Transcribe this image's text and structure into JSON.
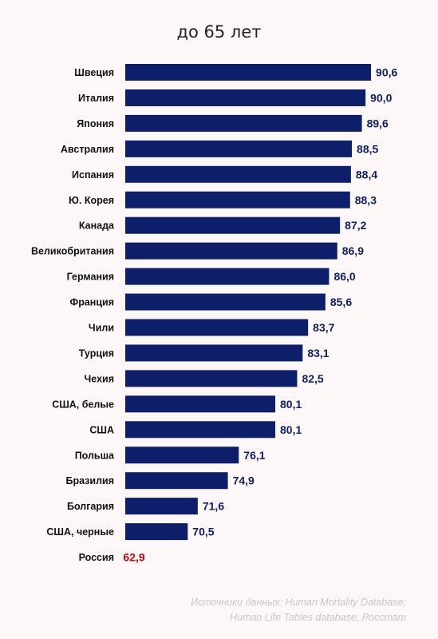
{
  "chart_data": {
    "type": "bar",
    "orientation": "horizontal",
    "title": "до 65 лет",
    "categories": [
      "Швеция",
      "Италия",
      "Япония",
      "Австралия",
      "Испания",
      "Ю. Корея",
      "Канада",
      "Великобритания",
      "Германия",
      "Франция",
      "Чили",
      "Турция",
      "Чехия",
      "США, белые",
      "США",
      "Польша",
      "Бразилия",
      "Болгария",
      "США, черные",
      "Россия"
    ],
    "values": [
      90.6,
      90.0,
      89.6,
      88.5,
      88.4,
      88.3,
      87.2,
      86.9,
      86.0,
      85.6,
      83.7,
      83.1,
      82.5,
      80.1,
      80.1,
      76.1,
      74.9,
      71.6,
      70.5,
      62.9
    ],
    "value_labels": [
      "90,6",
      "90,0",
      "89,6",
      "88,5",
      "88,4",
      "88,3",
      "87,2",
      "86,9",
      "86,0",
      "85,6",
      "83,7",
      "83,1",
      "82,5",
      "80,1",
      "80,1",
      "76,1",
      "74,9",
      "71,6",
      "70,5",
      "62,9"
    ],
    "highlight_index": 19,
    "colors": {
      "bar": "#0d1f6b",
      "highlight": "#c4080c",
      "label": "#0d1f6b",
      "highlight_label": "#c4080c"
    },
    "grid": false,
    "legend": "none"
  },
  "source": {
    "line1": "Источники данных: Human Mortality Database;",
    "line2": "Human Life Tables database; Росстат"
  }
}
